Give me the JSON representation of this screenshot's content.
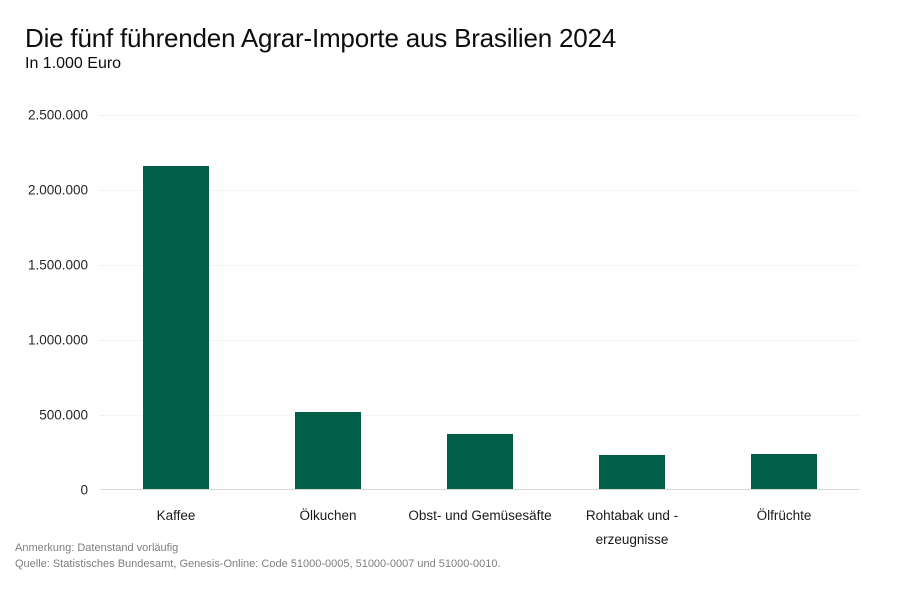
{
  "header": {
    "title": "Die fünf führenden Agrar-Importe aus Brasilien 2024",
    "subtitle": "In 1.000 Euro"
  },
  "footer": {
    "note": "Anmerkung: Datenstand vorläufig",
    "source": "Quelle: Statistisches Bundesamt, Genesis-Online: Code 51000-0005, 51000-0007 und 51000-0010."
  },
  "colors": {
    "bar": "#005E49",
    "gridline": "#e7e7e7",
    "baseline": "#dadada",
    "text": "#0d0d0d",
    "muted_text": "#7e7e7e"
  },
  "chart_data": {
    "type": "bar",
    "title": "Die fünf führenden Agrar-Importe aus Brasilien 2024",
    "subtitle": "In 1.000 Euro",
    "categories": [
      "Kaffee",
      "Ölkuchen",
      "Obst- und Gemüsesäfte",
      "Rohtabak und -erzeugnisse",
      "Ölfrüchte"
    ],
    "xtick_labels": [
      "Kaffee",
      "Ölkuchen",
      "Obst- und Gemüsesäfte",
      "Rohtabak und -\nerzeugnisse",
      "Ölfrüchte"
    ],
    "values": [
      2160000,
      520000,
      375000,
      233000,
      240000
    ],
    "unit": "1.000 Euro",
    "xlabel": "",
    "ylabel": "",
    "ylim": [
      0,
      2500000
    ],
    "yticks": [
      0,
      500000,
      1000000,
      1500000,
      2000000,
      2500000
    ],
    "ytick_labels": [
      "0",
      "500.000",
      "1.000.000",
      "1.500.000",
      "2.000.000",
      "2.500.000"
    ],
    "grid": "horizontal-dotted",
    "legend": "none",
    "bar_color": "#005E49"
  }
}
